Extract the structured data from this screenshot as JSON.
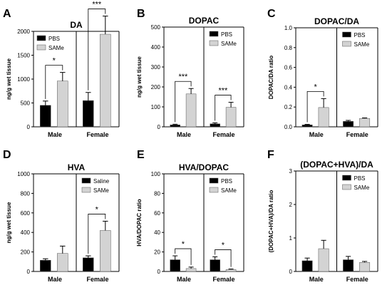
{
  "chart_data": [
    {
      "panel": "A",
      "type": "bar",
      "title": "DA",
      "ylabel": "ng/g wet tissue",
      "ylim": [
        0,
        2000
      ],
      "yticks": [
        0,
        500,
        1000,
        1500,
        2000
      ],
      "legend": [
        "PBS",
        "SAMe"
      ],
      "legend_position": "top-left",
      "categories": [
        "Male",
        "Female"
      ],
      "series": [
        {
          "name": "PBS",
          "color": "#000000",
          "values": [
            450,
            550
          ],
          "errors": [
            90,
            170
          ]
        },
        {
          "name": "SAMe",
          "color": "#d3d3d3",
          "values": [
            960,
            1940
          ],
          "errors": [
            180,
            380
          ]
        }
      ],
      "significance": [
        "*",
        "***"
      ]
    },
    {
      "panel": "B",
      "type": "bar",
      "title": "DOPAC",
      "ylabel": "ng/g wet tissue",
      "ylim": [
        0,
        500
      ],
      "yticks": [
        0,
        100,
        200,
        300,
        400,
        500
      ],
      "legend": [
        "PBS",
        "SAMe"
      ],
      "legend_position": "top-right",
      "categories": [
        "Male",
        "Female"
      ],
      "series": [
        {
          "name": "PBS",
          "color": "#000000",
          "values": [
            10,
            15
          ],
          "errors": [
            3,
            5
          ]
        },
        {
          "name": "SAMe",
          "color": "#d3d3d3",
          "values": [
            165,
            98
          ],
          "errors": [
            27,
            25
          ]
        }
      ],
      "significance": [
        "***",
        "***"
      ]
    },
    {
      "panel": "C",
      "type": "bar",
      "title": "DOPAC/DA",
      "ylabel": "DOPAC/DA ratio",
      "ylim": [
        0,
        1.0
      ],
      "yticks": [
        "0.0",
        "0.2",
        "0.4",
        "0.6",
        "0.8",
        "1.0"
      ],
      "legend": [
        "PBS",
        "SAMe"
      ],
      "legend_position": "top-right",
      "categories": [
        "Male",
        "Female"
      ],
      "series": [
        {
          "name": "PBS",
          "color": "#000000",
          "values": [
            0.02,
            0.055
          ],
          "errors": [
            0.005,
            0.01
          ]
        },
        {
          "name": "SAMe",
          "color": "#d3d3d3",
          "values": [
            0.195,
            0.085
          ],
          "errors": [
            0.09,
            0.005
          ]
        }
      ],
      "significance": [
        "*",
        ""
      ]
    },
    {
      "panel": "D",
      "type": "bar",
      "title": "HVA",
      "ylabel": "ng/g wet tissue",
      "ylim": [
        0,
        1000
      ],
      "yticks": [
        0,
        200,
        400,
        600,
        800,
        1000
      ],
      "legend": [
        "Saline",
        "SAMe"
      ],
      "legend_position": "top-right",
      "categories": [
        "Male",
        "Female"
      ],
      "series": [
        {
          "name": "Saline",
          "color": "#000000",
          "values": [
            115,
            140
          ],
          "errors": [
            15,
            20
          ]
        },
        {
          "name": "SAMe",
          "color": "#d3d3d3",
          "values": [
            185,
            420
          ],
          "errors": [
            75,
            95
          ]
        }
      ],
      "significance": [
        "",
        "*"
      ]
    },
    {
      "panel": "E",
      "type": "bar",
      "title": "HVA/DOPAC",
      "ylabel": "HVA/DOPAC ratio",
      "ylim": [
        0,
        100
      ],
      "yticks": [
        0,
        20,
        40,
        60,
        80,
        100
      ],
      "legend": [
        "PBS",
        "SAMe"
      ],
      "legend_position": "top-right",
      "categories": [
        "Male",
        "Female"
      ],
      "series": [
        {
          "name": "PBS",
          "color": "#000000",
          "values": [
            12,
            12
          ],
          "errors": [
            4,
            3
          ]
        },
        {
          "name": "SAMe",
          "color": "#d3d3d3",
          "values": [
            3,
            2
          ],
          "errors": [
            1.5,
            0.5
          ]
        }
      ],
      "significance": [
        "*",
        "*"
      ]
    },
    {
      "panel": "F",
      "type": "bar",
      "title": "(DOPAC+HVA)/DA",
      "ylabel": "(DOPAC+HVA)/DA ratio",
      "ylim": [
        0,
        3
      ],
      "yticks": [
        0,
        1,
        2,
        3
      ],
      "legend": [
        "PBS",
        "SAMe"
      ],
      "legend_position": "top-right",
      "categories": [
        "Male",
        "Female"
      ],
      "series": [
        {
          "name": "PBS",
          "color": "#000000",
          "values": [
            0.32,
            0.35
          ],
          "errors": [
            0.08,
            0.1
          ]
        },
        {
          "name": "SAMe",
          "color": "#d3d3d3",
          "values": [
            0.68,
            0.27
          ],
          "errors": [
            0.25,
            0.03
          ]
        }
      ],
      "significance": [
        "",
        ""
      ]
    }
  ]
}
